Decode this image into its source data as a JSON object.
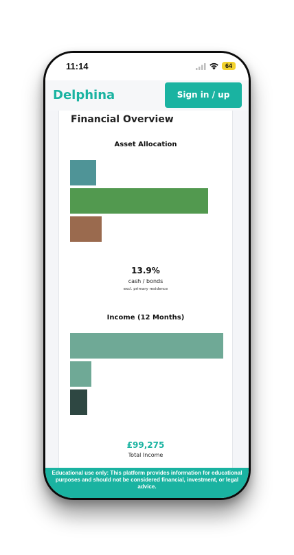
{
  "status_bar": {
    "time": "11:14",
    "battery": "64",
    "signal_icon": "cellular-signal-icon",
    "wifi_icon": "wifi-icon"
  },
  "header": {
    "brand": "Delphina",
    "signin_label": "Sign in / up",
    "brand_color": "#1ab3a1"
  },
  "page": {
    "title": "Financial Overview"
  },
  "asset_allocation": {
    "title": "Asset Allocation",
    "stat_value": "13.9%",
    "stat_label": "cash / bonds",
    "stat_note": "excl. primary residence"
  },
  "income": {
    "title": "Income (12 Months)",
    "total_value": "£99,275",
    "total_label": "Total Income"
  },
  "disclaimer": {
    "text": "Educational use only: This platform provides information for educational purposes and should not be considered financial, investment, or legal advice."
  },
  "chart_data": [
    {
      "type": "bar",
      "title": "Asset Allocation",
      "orientation": "horizontal",
      "values": [
        19,
        100,
        23
      ],
      "value_scale": "relative to largest bar (%)",
      "colors": [
        "#4f9497",
        "#52994f",
        "#9a6a4e"
      ]
    },
    {
      "type": "bar",
      "title": "Income (12 Months)",
      "orientation": "horizontal",
      "values": [
        100,
        14,
        11
      ],
      "value_scale": "relative to largest bar (%)",
      "colors": [
        "#6fa996",
        "#6fa996",
        "#2e4742"
      ]
    }
  ]
}
